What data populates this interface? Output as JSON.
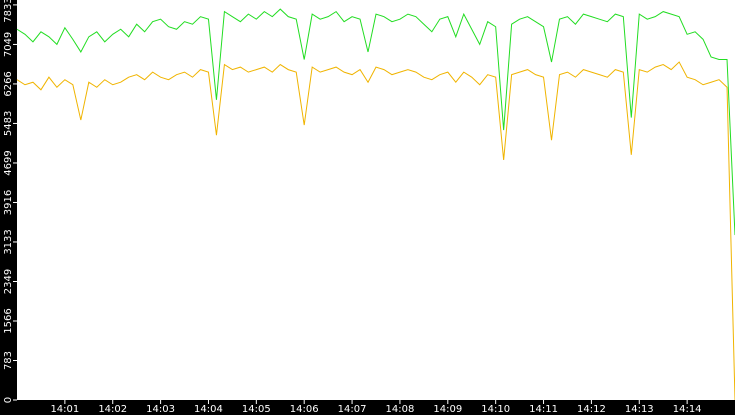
{
  "chart_data": {
    "type": "line",
    "x": [
      0,
      10,
      20,
      30,
      40,
      50,
      60,
      70,
      80,
      90,
      100,
      110,
      120,
      130,
      140,
      150,
      160,
      170,
      180,
      190,
      200,
      210,
      220,
      230,
      240,
      250,
      260,
      270,
      280,
      290,
      300,
      310,
      320,
      330,
      340,
      350,
      360,
      370,
      380,
      390,
      400,
      410,
      420,
      430,
      440,
      450,
      460,
      470,
      480,
      490,
      500,
      510,
      520,
      530,
      540,
      550,
      560,
      570,
      580,
      590,
      600,
      610,
      620,
      630,
      640,
      650,
      660,
      670,
      680,
      690,
      700,
      710,
      720,
      730,
      740,
      750,
      760,
      770,
      780,
      790,
      800,
      810,
      820,
      830,
      840,
      850,
      860,
      870,
      880,
      890,
      900
    ],
    "series": [
      {
        "color": "#22dd22",
        "values": [
          7350,
          7250,
          7100,
          7300,
          7200,
          7050,
          7380,
          7150,
          6900,
          7200,
          7300,
          7100,
          7250,
          7350,
          7200,
          7450,
          7300,
          7500,
          7550,
          7400,
          7350,
          7500,
          7450,
          7600,
          7550,
          5950,
          7700,
          7600,
          7500,
          7650,
          7550,
          7700,
          7600,
          7750,
          7600,
          7550,
          6750,
          7650,
          7550,
          7600,
          7700,
          7500,
          7600,
          7550,
          6900,
          7650,
          7600,
          7500,
          7550,
          7650,
          7600,
          7450,
          7300,
          7550,
          7600,
          7200,
          7650,
          7350,
          7050,
          7500,
          7400,
          5350,
          7450,
          7550,
          7600,
          7500,
          7400,
          6700,
          7550,
          7600,
          7450,
          7650,
          7600,
          7550,
          7500,
          7650,
          7600,
          5600,
          7650,
          7550,
          7600,
          7700,
          7650,
          7600,
          7250,
          7300,
          7150,
          6800,
          6750,
          6750,
          3270
        ]
      },
      {
        "color": "#f0b400",
        "values": [
          6350,
          6250,
          6300,
          6150,
          6400,
          6200,
          6350,
          6250,
          5550,
          6300,
          6200,
          6350,
          6250,
          6300,
          6400,
          6450,
          6350,
          6500,
          6400,
          6350,
          6450,
          6500,
          6400,
          6550,
          6500,
          5250,
          6650,
          6550,
          6600,
          6500,
          6550,
          6600,
          6500,
          6650,
          6550,
          6500,
          5450,
          6600,
          6500,
          6550,
          6600,
          6500,
          6450,
          6550,
          6300,
          6600,
          6550,
          6450,
          6500,
          6550,
          6500,
          6400,
          6350,
          6450,
          6500,
          6300,
          6500,
          6400,
          6250,
          6450,
          6400,
          4760,
          6450,
          6500,
          6550,
          6450,
          6400,
          5150,
          6450,
          6500,
          6400,
          6550,
          6500,
          6450,
          6400,
          6550,
          6500,
          4860,
          6550,
          6500,
          6600,
          6650,
          6550,
          6700,
          6400,
          6350,
          6250,
          6300,
          6350,
          6200,
          0
        ]
      }
    ],
    "xlim": [
      0,
      900
    ],
    "xticks": [
      {
        "value": 60,
        "label": "14:01"
      },
      {
        "value": 120,
        "label": "14:02"
      },
      {
        "value": 180,
        "label": "14:03"
      },
      {
        "value": 240,
        "label": "14:04"
      },
      {
        "value": 300,
        "label": "14:05"
      },
      {
        "value": 360,
        "label": "14:06"
      },
      {
        "value": 420,
        "label": "14:07"
      },
      {
        "value": 480,
        "label": "14:08"
      },
      {
        "value": 540,
        "label": "14:09"
      },
      {
        "value": 600,
        "label": "14:10"
      },
      {
        "value": 660,
        "label": "14:11"
      },
      {
        "value": 720,
        "label": "14:12"
      },
      {
        "value": 780,
        "label": "14:13"
      },
      {
        "value": 840,
        "label": "14:14"
      }
    ],
    "ylim": [
      0,
      7930
    ],
    "yticks": [
      0,
      783,
      1566,
      2349,
      3133,
      3916,
      4699,
      5483,
      6266,
      7049,
      7833
    ]
  }
}
